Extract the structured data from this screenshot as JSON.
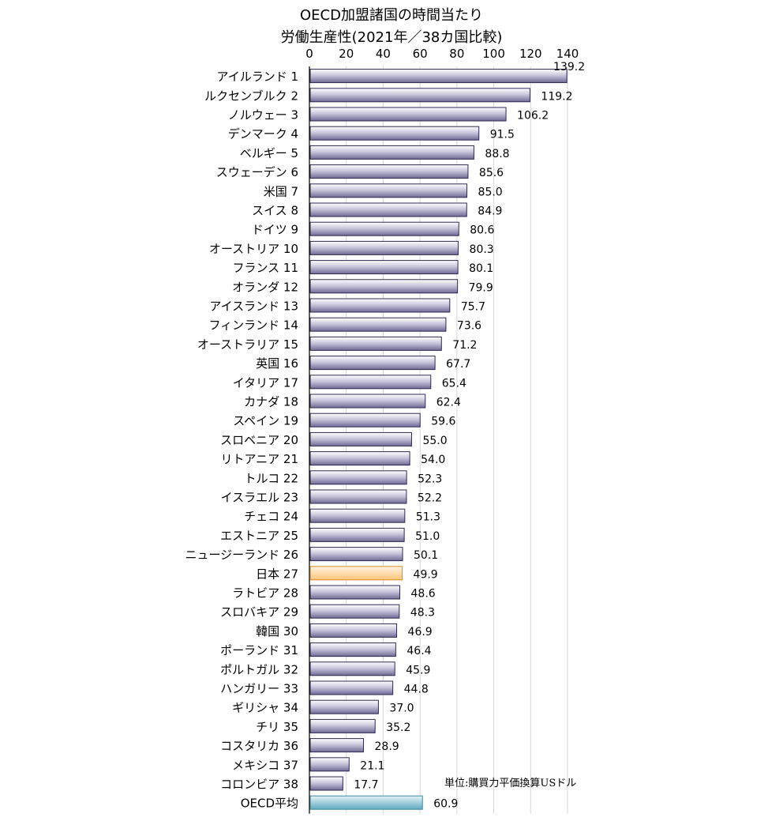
{
  "chart_data": {
    "type": "bar",
    "orientation": "horizontal",
    "title": "OECD加盟諸国の時間当たり",
    "subtitle": "労働生産性(2021年／38カ国比較)",
    "unit_note": "単位:購買力平価換算USドル",
    "xlim": [
      0,
      140
    ],
    "xticks": [
      "0",
      "20",
      "40",
      "60",
      "80",
      "100",
      "120",
      "140"
    ],
    "grid": true,
    "colors": {
      "default": "#9a95ba",
      "highlight": "#ffc980",
      "average": "#86c3d6"
    },
    "categories": [
      "アイルランド 1",
      "ルクセンブルク 2",
      "ノルウェー 3",
      "デンマーク 4",
      "ベルギー 5",
      "スウェーデン 6",
      "米国 7",
      "スイス 8",
      "ドイツ 9",
      "オーストリア 10",
      "フランス 11",
      "オランダ 12",
      "アイスランド 13",
      "フィンランド 14",
      "オーストラリア 15",
      "英国 16",
      "イタリア 17",
      "カナダ 18",
      "スペイン 19",
      "スロベニア 20",
      "リトアニア 21",
      "トルコ 22",
      "イスラエル 23",
      "チェコ 24",
      "エストニア 25",
      "ニュージーランド 26",
      "日本 27",
      "ラトビア 28",
      "スロバキア 29",
      "韓国 30",
      "ポーランド 31",
      "ポルトガル 32",
      "ハンガリー 33",
      "ギリシャ 34",
      "チリ 35",
      "コスタリカ 36",
      "メキシコ 37",
      "コロンビア 38",
      "OECD平均"
    ],
    "values": [
      139.2,
      119.2,
      106.2,
      91.5,
      88.8,
      85.6,
      85.0,
      84.9,
      80.6,
      80.3,
      80.1,
      79.9,
      75.7,
      73.6,
      71.2,
      67.7,
      65.4,
      62.4,
      59.6,
      55.0,
      54.0,
      52.3,
      52.2,
      51.3,
      51.0,
      50.1,
      49.9,
      48.6,
      48.3,
      46.9,
      46.4,
      45.9,
      44.8,
      37.0,
      35.2,
      28.9,
      21.1,
      17.7,
      60.9
    ],
    "value_labels": [
      "139.2",
      "119.2",
      "106.2",
      "91.5",
      "88.8",
      "85.6",
      "85.0",
      "84.9",
      "80.6",
      "80.3",
      "80.1",
      "79.9",
      "75.7",
      "73.6",
      "71.2",
      "67.7",
      "65.4",
      "62.4",
      "59.6",
      "55.0",
      "54.0",
      "52.3",
      "52.2",
      "51.3",
      "51.0",
      "50.1",
      "49.9",
      "48.6",
      "48.3",
      "46.9",
      "46.4",
      "45.9",
      "44.8",
      "37.0",
      "35.2",
      "28.9",
      "21.1",
      "17.7",
      "60.9"
    ],
    "highlight": "日本 27",
    "average": "OECD平均"
  }
}
